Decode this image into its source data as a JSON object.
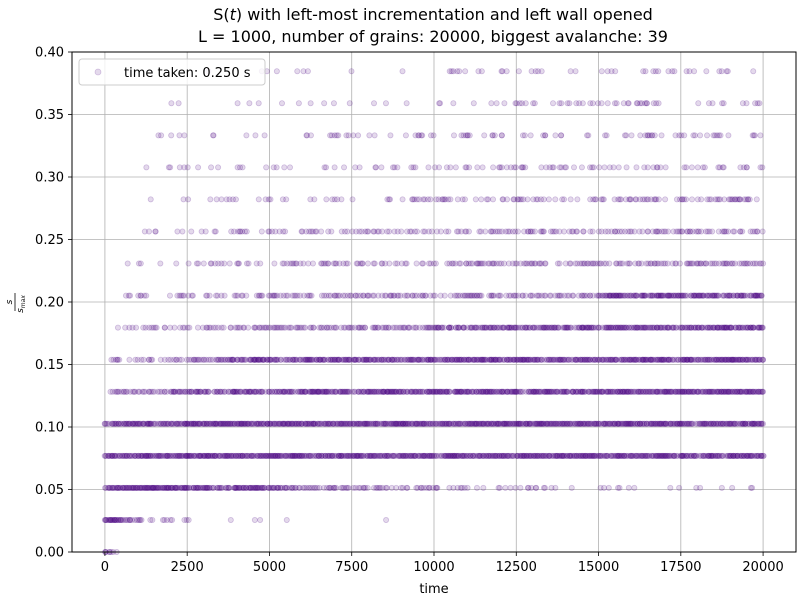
{
  "chart_data": {
    "type": "scatter",
    "title_prefix": "S(",
    "title_var": "t",
    "title_suffix": ") with left-most incrementation and left wall opened",
    "subtitle": "L = 1000, number of grains: 20000, biggest avalanche: 39",
    "xlabel": "time",
    "ylabel_num": "s",
    "ylabel_den": "s",
    "ylabel_den_sub": "max",
    "xlim": [
      -1000,
      21000
    ],
    "ylim": [
      0.0,
      0.4
    ],
    "x_ticks": [
      0,
      2500,
      5000,
      7500,
      10000,
      12500,
      15000,
      17500,
      20000
    ],
    "x_tick_labels": [
      "0",
      "2500",
      "5000",
      "7500",
      "10000",
      "12500",
      "15000",
      "17500",
      "20000"
    ],
    "y_ticks": [
      0.0,
      0.05,
      0.1,
      0.15,
      0.2,
      0.25,
      0.3,
      0.35,
      0.4
    ],
    "y_tick_labels": [
      "0.00",
      "0.05",
      "0.10",
      "0.15",
      "0.20",
      "0.25",
      "0.30",
      "0.35",
      "0.40"
    ],
    "grid": true,
    "legend": {
      "position": "top-left",
      "entries": [
        "time taken: 0.250 s"
      ]
    },
    "marker_color": "#4b0082",
    "marker_alpha": 0.15,
    "n_points": 20000,
    "time_range": [
      0,
      20000
    ],
    "levels": [
      {
        "s": 0,
        "y": 0.0,
        "density": [
          [
            0,
            1.0
          ],
          [
            600,
            0.0
          ]
        ]
      },
      {
        "s": 1,
        "y": 0.0256,
        "density": [
          [
            0,
            1.0
          ],
          [
            1500,
            0.5
          ],
          [
            2500,
            0.1
          ],
          [
            7500,
            0.02
          ],
          [
            12500,
            0.005
          ]
        ]
      },
      {
        "s": 2,
        "y": 0.0513,
        "density": [
          [
            0,
            1.0
          ],
          [
            5000,
            0.8
          ],
          [
            10000,
            0.3
          ],
          [
            20000,
            0.1
          ]
        ]
      },
      {
        "s": 3,
        "y": 0.0769,
        "density": [
          [
            0,
            1.0
          ],
          [
            20000,
            0.95
          ]
        ]
      },
      {
        "s": 4,
        "y": 0.1026,
        "density": [
          [
            0,
            0.95
          ],
          [
            20000,
            1.0
          ]
        ]
      },
      {
        "s": 5,
        "y": 0.1282,
        "density": [
          [
            100,
            0.6
          ],
          [
            5000,
            0.9
          ],
          [
            20000,
            1.0
          ]
        ]
      },
      {
        "s": 6,
        "y": 0.1538,
        "density": [
          [
            200,
            0.4
          ],
          [
            5000,
            0.8
          ],
          [
            20000,
            1.0
          ]
        ]
      },
      {
        "s": 7,
        "y": 0.1795,
        "density": [
          [
            300,
            0.3
          ],
          [
            5000,
            0.6
          ],
          [
            20000,
            0.9
          ]
        ]
      },
      {
        "s": 8,
        "y": 0.2051,
        "density": [
          [
            500,
            0.2
          ],
          [
            5000,
            0.5
          ],
          [
            20000,
            0.8
          ]
        ]
      },
      {
        "s": 9,
        "y": 0.2308,
        "density": [
          [
            600,
            0.15
          ],
          [
            5000,
            0.35
          ],
          [
            20000,
            0.6
          ]
        ]
      },
      {
        "s": 10,
        "y": 0.2564,
        "density": [
          [
            700,
            0.1
          ],
          [
            5000,
            0.3
          ],
          [
            20000,
            0.55
          ]
        ]
      },
      {
        "s": 11,
        "y": 0.2821,
        "density": [
          [
            900,
            0.08
          ],
          [
            5000,
            0.2
          ],
          [
            20000,
            0.45
          ]
        ]
      },
      {
        "s": 12,
        "y": 0.3077,
        "density": [
          [
            1000,
            0.06
          ],
          [
            5000,
            0.15
          ],
          [
            20000,
            0.35
          ]
        ]
      },
      {
        "s": 13,
        "y": 0.3333,
        "density": [
          [
            1100,
            0.04
          ],
          [
            5000,
            0.12
          ],
          [
            20000,
            0.3
          ]
        ]
      },
      {
        "s": 14,
        "y": 0.359,
        "density": [
          [
            1300,
            0.03
          ],
          [
            5000,
            0.1
          ],
          [
            20000,
            0.2
          ]
        ]
      },
      {
        "s": 15,
        "y": 0.3846,
        "density": [
          [
            2000,
            0.02
          ],
          [
            5000,
            0.06
          ],
          [
            20000,
            0.15
          ]
        ]
      }
    ]
  }
}
